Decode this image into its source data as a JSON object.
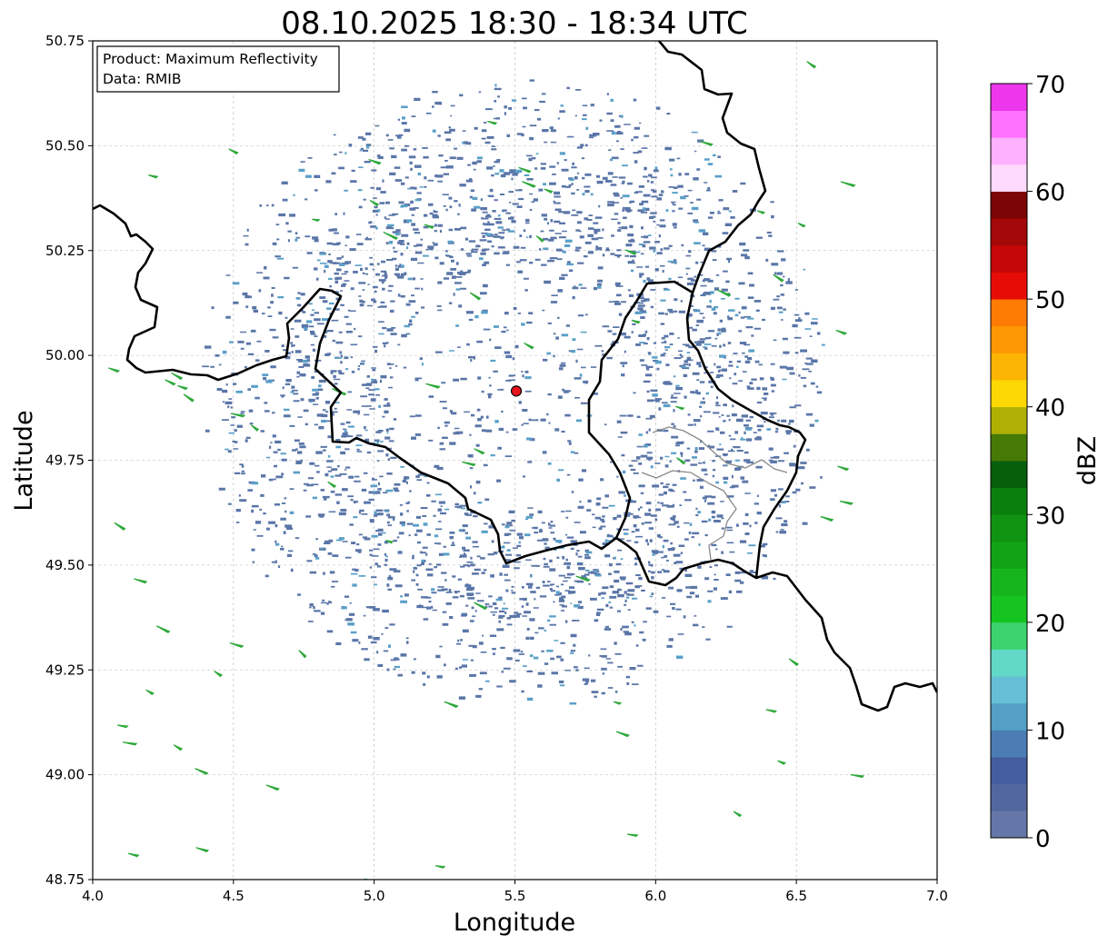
{
  "title": "08.10.2025 18:30 - 18:34 UTC",
  "info_box": {
    "product": "Product: Maximum Reflectivity",
    "data": "Data: RMIB"
  },
  "map": {
    "xlabel": "Longitude",
    "ylabel": "Latitude",
    "xlim": [
      4.0,
      7.0
    ],
    "ylim": [
      48.75,
      50.75
    ],
    "x_ticks": [
      "4.0",
      "4.5",
      "5.0",
      "5.5",
      "6.0",
      "6.5",
      "7.0"
    ],
    "y_ticks": [
      "48.75",
      "49.00",
      "49.25",
      "49.50",
      "49.75",
      "50.00",
      "50.25",
      "50.50",
      "50.75"
    ],
    "grid": true,
    "radar_site": {
      "lon": 5.505,
      "lat": 49.915,
      "color": "#e8141b"
    },
    "echo_colors": [
      "#4a5f96",
      "#5a76a8",
      "#6f8fbb",
      "#3f63a8",
      "#5aa0c8"
    ]
  },
  "colorbar": {
    "label": "dBZ",
    "ticks": [
      "0",
      "10",
      "20",
      "30",
      "40",
      "50",
      "60",
      "70"
    ],
    "range": [
      0,
      70
    ],
    "colors": [
      "#6577a8",
      "#53679f",
      "#435da0",
      "#4b7db4",
      "#549fc4",
      "#65bfd6",
      "#62d8c6",
      "#3dd46f",
      "#16c420",
      "#17b51c",
      "#11a515",
      "#0f9311",
      "#0b7f0e",
      "#075f0b",
      "#467a07",
      "#aeb004",
      "#fdd804",
      "#fcb503",
      "#fd9703",
      "#fe7c03",
      "#e60d07",
      "#c50707",
      "#a50808",
      "#7c0505",
      "#fedaff",
      "#feb1fe",
      "#fd73fd",
      "#ed37ed"
    ]
  }
}
